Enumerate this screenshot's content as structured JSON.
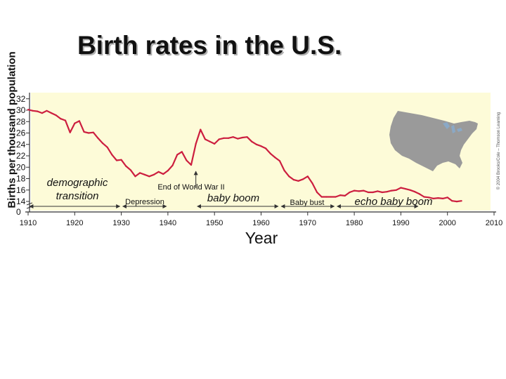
{
  "chart_data": {
    "type": "line",
    "title": "Birth rates in the U.S.",
    "ylabel": "Births per thousand population",
    "xlabel": "Year",
    "xlim": [
      1910,
      2010
    ],
    "ylim": [
      0,
      32
    ],
    "axis_break": "y axis jumps from 0 to 14",
    "x_ticks": [
      1910,
      1920,
      1930,
      1940,
      1950,
      1960,
      1970,
      1980,
      1990,
      2000,
      2010
    ],
    "y_ticks": [
      0,
      14,
      16,
      18,
      20,
      22,
      24,
      26,
      28,
      30,
      32
    ],
    "grid": false,
    "line_color": "#cc1e3f",
    "background_color": "#fdfbd8",
    "copyright_text": "© 2004 Brooks/Cole – Thomson Learning",
    "series": [
      {
        "x": [
          1910,
          1911,
          1912,
          1913,
          1914,
          1915,
          1916,
          1917,
          1918,
          1919,
          1920,
          1921,
          1922,
          1923,
          1924,
          1925,
          1926,
          1927,
          1928,
          1929,
          1930,
          1931,
          1932,
          1933,
          1934,
          1935,
          1936,
          1937,
          1938,
          1939,
          1940,
          1941,
          1942,
          1943,
          1944,
          1945,
          1946,
          1947,
          1948,
          1949,
          1950,
          1951,
          1952,
          1953,
          1954,
          1955,
          1956,
          1957,
          1958,
          1959,
          1960,
          1961,
          1962,
          1963,
          1964,
          1965,
          1966,
          1967,
          1968,
          1969,
          1970,
          1971,
          1972,
          1973,
          1974,
          1975,
          1976,
          1977,
          1978,
          1979,
          1980,
          1981,
          1982,
          1983,
          1984,
          1985,
          1986,
          1987,
          1988,
          1989,
          1990,
          1991,
          1992,
          1993,
          1994,
          1995,
          1996,
          1997,
          1998,
          1999,
          2000,
          2001,
          2002,
          2003
        ],
        "y": [
          30.1,
          29.9,
          29.8,
          29.5,
          29.9,
          29.5,
          29.1,
          28.5,
          28.2,
          26.1,
          27.7,
          28.1,
          26.2,
          26.0,
          26.1,
          25.1,
          24.2,
          23.5,
          22.2,
          21.2,
          21.3,
          20.2,
          19.5,
          18.4,
          19.0,
          18.7,
          18.4,
          18.7,
          19.2,
          18.8,
          19.4,
          20.3,
          22.2,
          22.7,
          21.2,
          20.4,
          24.1,
          26.6,
          24.9,
          24.5,
          24.1,
          24.9,
          25.1,
          25.1,
          25.3,
          25.0,
          25.2,
          25.3,
          24.5,
          24.0,
          23.7,
          23.3,
          22.4,
          21.7,
          21.1,
          19.4,
          18.4,
          17.8,
          17.6,
          17.9,
          18.4,
          17.2,
          15.6,
          14.8,
          14.8,
          14.8,
          14.8,
          15.1,
          15.0,
          15.6,
          15.9,
          15.8,
          15.9,
          15.6,
          15.6,
          15.8,
          15.6,
          15.7,
          15.9,
          16.0,
          16.4,
          16.2,
          16.0,
          15.7,
          15.3,
          14.8,
          14.7,
          14.5,
          14.6,
          14.5,
          14.7,
          14.1,
          13.9,
          14.1
        ]
      }
    ],
    "annotations": [
      {
        "text": "demographic",
        "span": [
          1910,
          1930
        ]
      },
      {
        "text": "transition",
        "span": [
          1910,
          1930
        ]
      },
      {
        "text": "Depression",
        "span": [
          1930,
          1940
        ]
      },
      {
        "text": "End of World War II",
        "arrow_year": 1946
      },
      {
        "text": "baby boom",
        "span": [
          1946,
          1964
        ]
      },
      {
        "text": "Baby bust",
        "span": [
          1964,
          1976
        ]
      },
      {
        "text": "echo baby boom",
        "span": [
          1976,
          1994
        ]
      }
    ]
  }
}
